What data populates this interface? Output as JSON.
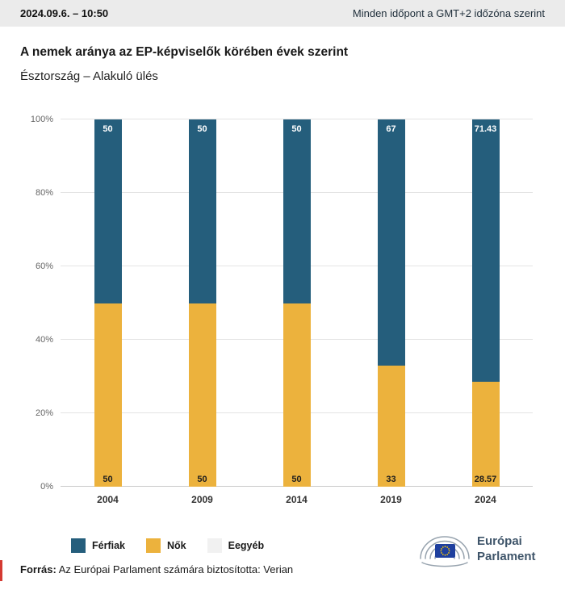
{
  "header": {
    "date_time": "2024.09.6. – 10:50",
    "timezone_note": "Minden időpont a GMT+2 időzóna szerint"
  },
  "chart_data": {
    "type": "bar",
    "stacked": true,
    "title": "A nemek aránya az EP-képviselők körében évek szerint",
    "subtitle": "Észtország – Alakuló ülés",
    "categories": [
      "2004",
      "2009",
      "2014",
      "2019",
      "2024"
    ],
    "series": [
      {
        "name": "Férfiak",
        "color": "#255e7c",
        "label_color": "#ffffff",
        "values": [
          50,
          50,
          50,
          67,
          71.43
        ]
      },
      {
        "name": "Nők",
        "color": "#ecb23d",
        "label_color": "#1d1d1d",
        "values": [
          50,
          50,
          50,
          33,
          28.57
        ]
      },
      {
        "name": "Eegyéb",
        "color": "#f1f1f1",
        "label_color": "#1d1d1d",
        "values": [
          0,
          0,
          0,
          0,
          0
        ]
      }
    ],
    "ylim": [
      0,
      100
    ],
    "yticks": [
      "0%",
      "20%",
      "40%",
      "60%",
      "80%",
      "100%"
    ],
    "grid": true,
    "legend_position": "bottom"
  },
  "logo": {
    "line1": "Európai",
    "line2": "Parlament",
    "text_color": "#3f556a",
    "flag_color": "#1e3f9e",
    "star_color": "#ffcc00",
    "arc_color": "#97a3ae"
  },
  "footer": {
    "source_label": "Forrás:",
    "source_text": " Az Európai Parlament számára biztosította: Verian"
  },
  "colors": {
    "topbar_bg": "#ebebeb",
    "grid": "#e4e4e4",
    "axis": "#c9c9c9",
    "tick_text": "#666666",
    "accent": "#d43a32"
  }
}
